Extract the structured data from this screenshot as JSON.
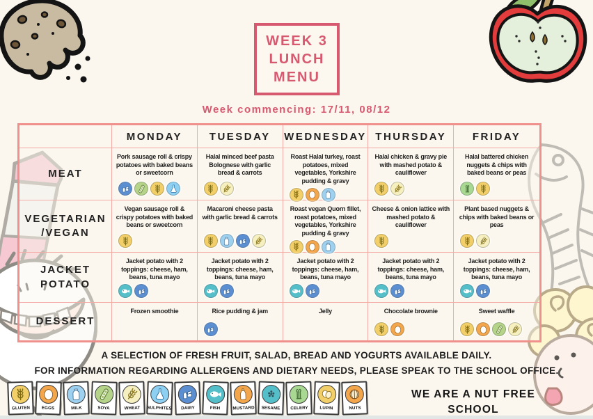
{
  "page": {
    "title_lines": [
      "WEEK 3",
      "LUNCH",
      "MENU"
    ],
    "subtitle": "Week commencing: 17/11, 08/12",
    "footer_line1": "A SELECTION OF FRESH FRUIT, SALAD, BREAD AND YOGURTS AVAILABLE DAILY.",
    "footer_line2": "FOR INFORMATION REGARDING ALLERGENS AND DIETARY NEEDS, PLEASE SPEAK TO THE SCHOOL OFFICE.",
    "nut_free": "WE ARE A NUT FREE SCHOOL"
  },
  "colors": {
    "accent_pink": "#d6596f",
    "grid_outer_pink": "#f0908c",
    "grid_inner_pink": "#f5aba5",
    "background": "#fbf7ee",
    "text": "#1e1e1e"
  },
  "menu": {
    "day_headers": [
      "MONDAY",
      "TUESDAY",
      "WEDNESDAY",
      "THURSDAY",
      "FRIDAY"
    ],
    "rows": [
      {
        "label": "MEAT",
        "cells": [
          {
            "text": "Pork sausage roll & crispy potatoes with baked beans or sweetcorn",
            "allergens": [
              "dairy",
              "soya",
              "gluten",
              "sulphites"
            ]
          },
          {
            "text": "Halal minced beef pasta Bolognese with garlic bread & carrots",
            "allergens": [
              "gluten",
              "wheat"
            ]
          },
          {
            "text": "Roast Halal turkey, roast potatoes, mixed vegetables, Yorkshire pudding & gravy",
            "allergens": [
              "gluten",
              "eggs",
              "milk"
            ]
          },
          {
            "text": "Halal chicken & gravy pie with mashed potato & cauliflower",
            "allergens": [
              "gluten",
              "wheat"
            ]
          },
          {
            "text": "Halal battered chicken nuggets & chips with baked beans or peas",
            "allergens": [
              "celery",
              "gluten"
            ]
          }
        ]
      },
      {
        "label": "VEGETARIAN /VEGAN",
        "cells": [
          {
            "text": "Vegan sausage roll & crispy potatoes with baked beans or sweetcorn",
            "allergens": [
              "gluten"
            ]
          },
          {
            "text": "Macaroni cheese pasta with garlic bread & carrots",
            "allergens": [
              "gluten",
              "milk",
              "dairy",
              "wheat"
            ]
          },
          {
            "text": "Roast vegan Quorn fillet, roast potatoes, mixed vegetables, Yorkshire pudding & gravy",
            "allergens": [
              "gluten",
              "eggs",
              "milk"
            ]
          },
          {
            "text": "Cheese & onion lattice with mashed potato & cauliflower",
            "allergens": [
              "gluten"
            ]
          },
          {
            "text": "Plant based nuggets & chips with baked beans or peas",
            "allergens": [
              "gluten",
              "wheat"
            ]
          }
        ]
      },
      {
        "label": "JACKET POTATO",
        "cells": [
          {
            "text": "Jacket potato with 2 toppings: cheese, ham, beans, tuna mayo",
            "allergens": [
              "fish",
              "dairy"
            ]
          },
          {
            "text": "Jacket potato with 2 toppings: cheese, ham, beans, tuna mayo",
            "allergens": [
              "fish",
              "dairy"
            ]
          },
          {
            "text": "Jacket potato with 2 toppings: cheese, ham, beans, tuna mayo",
            "allergens": [
              "fish",
              "dairy"
            ]
          },
          {
            "text": "Jacket potato with 2 toppings: cheese, ham, beans, tuna mayo",
            "allergens": [
              "fish",
              "dairy"
            ]
          },
          {
            "text": "Jacket potato with 2 toppings: cheese, ham, beans, tuna mayo",
            "allergens": [
              "fish",
              "dairy"
            ]
          }
        ]
      },
      {
        "label": "DESSERT",
        "cells": [
          {
            "text": "Frozen smoothie",
            "allergens": []
          },
          {
            "text": "Rice pudding & jam",
            "allergens": [
              "dairy"
            ]
          },
          {
            "text": "Jelly",
            "allergens": []
          },
          {
            "text": "Chocolate brownie",
            "allergens": [
              "gluten",
              "eggs"
            ]
          },
          {
            "text": "Sweet waffle",
            "allergens": [
              "gluten",
              "eggs",
              "soya",
              "wheat"
            ]
          }
        ]
      }
    ]
  },
  "legend": {
    "allergens": [
      {
        "id": "gluten",
        "label": "GLUTEN",
        "color": "#f2cf68"
      },
      {
        "id": "eggs",
        "label": "EGGS",
        "color": "#f3a64b"
      },
      {
        "id": "milk",
        "label": "MILK",
        "color": "#9ed1ef"
      },
      {
        "id": "soya",
        "label": "SOYA",
        "color": "#b5d48a"
      },
      {
        "id": "wheat",
        "label": "WHEAT",
        "color": "#f6efc0"
      },
      {
        "id": "sulphites",
        "label": "SULPHITES",
        "color": "#8ed0f2"
      },
      {
        "id": "dairy",
        "label": "DAIRY",
        "color": "#5b8fd2"
      },
      {
        "id": "fish",
        "label": "FISH",
        "color": "#54bfc9"
      },
      {
        "id": "mustard",
        "label": "MUSTARD",
        "color": "#f3a64b"
      },
      {
        "id": "sesame",
        "label": "SESAME",
        "color": "#54bfc9"
      },
      {
        "id": "celery",
        "label": "CELERY",
        "color": "#a9d893"
      },
      {
        "id": "lupin",
        "label": "LUPIN",
        "color": "#f2cf68"
      },
      {
        "id": "nuts",
        "label": "NUTS",
        "color": "#f3a64b"
      }
    ]
  }
}
